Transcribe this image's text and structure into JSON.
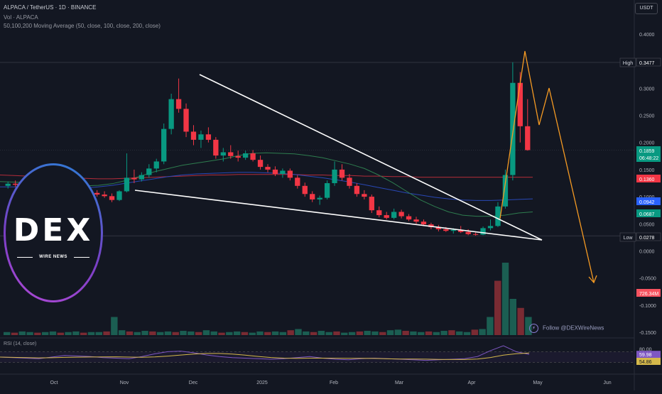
{
  "header": {
    "symbol_line": "ALPACA / TetherUS · 1D · BINANCE",
    "volume_line": "Vol · ALPACA",
    "ma_line": "50,100,200 Moving Average (50, close, 100, close, 200, close)"
  },
  "currency": "USDT",
  "follow": {
    "icon": "lightning-icon",
    "text": "Follow @DEXWireNews"
  },
  "logo": {
    "word": "DEX",
    "sub": "WIRE NEWS"
  },
  "chart_data": {
    "type": "candlestick",
    "price_axis": {
      "ticks": [
        "0.4000",
        "0.3000",
        "0.2500",
        "0.2000",
        "0.1500",
        "0.1000",
        "0.0500",
        "0.0000",
        "-0.0500",
        "-0.1000",
        "-0.1500"
      ],
      "range": [
        -0.15,
        0.4
      ]
    },
    "time_axis": {
      "ticks": [
        "Oct",
        "Nov",
        "Dec",
        "2025",
        "Feb",
        "Mar",
        "Apr",
        "May",
        "Jun"
      ]
    },
    "price_labels": [
      {
        "text": "High",
        "value": "0.3477",
        "color": "#131722",
        "border": "#434651"
      },
      {
        "text": "",
        "value": "0.1859",
        "sub": "06:48:22",
        "color": "#089981"
      },
      {
        "text": "",
        "value": "0.1360",
        "color": "#f23645"
      },
      {
        "text": "",
        "value": "0.0942",
        "color": "#2962ff"
      },
      {
        "text": "",
        "value": "0.0687",
        "color": "#089981"
      },
      {
        "text": "Low",
        "value": "0.0278",
        "color": "#131722",
        "border": "#434651"
      },
      {
        "text": "",
        "value": "726.34M",
        "color": "#f7525f"
      }
    ],
    "candles_ohlc_approx": [
      [
        0.12,
        0.128,
        0.115,
        0.124
      ],
      [
        0.124,
        0.13,
        0.118,
        0.122
      ],
      [
        0.122,
        0.125,
        0.11,
        0.113
      ],
      [
        0.113,
        0.12,
        0.108,
        0.118
      ],
      [
        0.118,
        0.126,
        0.114,
        0.121
      ],
      [
        0.121,
        0.124,
        0.112,
        0.115
      ],
      [
        0.115,
        0.119,
        0.106,
        0.108
      ],
      [
        0.108,
        0.116,
        0.104,
        0.112
      ],
      [
        0.112,
        0.122,
        0.11,
        0.119
      ],
      [
        0.119,
        0.125,
        0.113,
        0.116
      ],
      [
        0.116,
        0.121,
        0.11,
        0.113
      ],
      [
        0.113,
        0.118,
        0.105,
        0.107
      ],
      [
        0.107,
        0.112,
        0.1,
        0.104
      ],
      [
        0.104,
        0.11,
        0.098,
        0.101
      ],
      [
        0.101,
        0.106,
        0.09,
        0.094
      ],
      [
        0.094,
        0.112,
        0.092,
        0.11
      ],
      [
        0.11,
        0.18,
        0.108,
        0.135
      ],
      [
        0.135,
        0.15,
        0.125,
        0.132
      ],
      [
        0.132,
        0.145,
        0.128,
        0.14
      ],
      [
        0.14,
        0.16,
        0.135,
        0.152
      ],
      [
        0.152,
        0.17,
        0.145,
        0.165
      ],
      [
        0.165,
        0.235,
        0.16,
        0.225
      ],
      [
        0.225,
        0.29,
        0.215,
        0.28
      ],
      [
        0.28,
        0.318,
        0.255,
        0.262
      ],
      [
        0.262,
        0.272,
        0.21,
        0.22
      ],
      [
        0.22,
        0.232,
        0.195,
        0.205
      ],
      [
        0.205,
        0.222,
        0.19,
        0.215
      ],
      [
        0.215,
        0.228,
        0.2,
        0.205
      ],
      [
        0.205,
        0.21,
        0.17,
        0.176
      ],
      [
        0.176,
        0.19,
        0.165,
        0.182
      ],
      [
        0.182,
        0.195,
        0.17,
        0.175
      ],
      [
        0.175,
        0.185,
        0.165,
        0.172
      ],
      [
        0.172,
        0.185,
        0.168,
        0.18
      ],
      [
        0.18,
        0.186,
        0.165,
        0.168
      ],
      [
        0.168,
        0.176,
        0.15,
        0.155
      ],
      [
        0.155,
        0.16,
        0.145,
        0.15
      ],
      [
        0.15,
        0.156,
        0.138,
        0.142
      ],
      [
        0.142,
        0.152,
        0.135,
        0.148
      ],
      [
        0.148,
        0.152,
        0.13,
        0.135
      ],
      [
        0.135,
        0.14,
        0.115,
        0.12
      ],
      [
        0.12,
        0.126,
        0.1,
        0.105
      ],
      [
        0.105,
        0.11,
        0.09,
        0.095
      ],
      [
        0.095,
        0.102,
        0.085,
        0.098
      ],
      [
        0.098,
        0.13,
        0.095,
        0.125
      ],
      [
        0.125,
        0.165,
        0.12,
        0.15
      ],
      [
        0.15,
        0.16,
        0.13,
        0.135
      ],
      [
        0.135,
        0.142,
        0.115,
        0.12
      ],
      [
        0.12,
        0.125,
        0.1,
        0.105
      ],
      [
        0.105,
        0.112,
        0.095,
        0.1
      ],
      [
        0.1,
        0.104,
        0.07,
        0.075
      ],
      [
        0.075,
        0.082,
        0.062,
        0.066
      ],
      [
        0.066,
        0.072,
        0.058,
        0.061
      ],
      [
        0.061,
        0.078,
        0.058,
        0.072
      ],
      [
        0.072,
        0.076,
        0.06,
        0.064
      ],
      [
        0.064,
        0.068,
        0.055,
        0.058
      ],
      [
        0.058,
        0.063,
        0.05,
        0.054
      ],
      [
        0.054,
        0.058,
        0.046,
        0.049
      ],
      [
        0.049,
        0.052,
        0.04,
        0.044
      ],
      [
        0.044,
        0.048,
        0.036,
        0.04
      ],
      [
        0.04,
        0.044,
        0.035,
        0.037
      ],
      [
        0.037,
        0.042,
        0.032,
        0.039
      ],
      [
        0.039,
        0.046,
        0.033,
        0.035
      ],
      [
        0.035,
        0.04,
        0.029,
        0.031
      ],
      [
        0.031,
        0.034,
        0.028,
        0.03
      ],
      [
        0.03,
        0.045,
        0.029,
        0.042
      ],
      [
        0.042,
        0.058,
        0.038,
        0.046
      ],
      [
        0.046,
        0.09,
        0.044,
        0.082
      ],
      [
        0.082,
        0.15,
        0.078,
        0.14
      ],
      [
        0.14,
        0.348,
        0.13,
        0.31
      ],
      [
        0.31,
        0.33,
        0.2,
        0.23
      ],
      [
        0.23,
        0.28,
        0.185,
        0.186
      ]
    ],
    "ma50_approx": [
      0.128,
      0.127,
      0.126,
      0.124,
      0.122,
      0.121,
      0.12,
      0.121,
      0.124,
      0.13,
      0.138,
      0.146,
      0.152,
      0.158,
      0.162,
      0.166,
      0.17,
      0.176,
      0.18,
      0.181,
      0.18,
      0.179,
      0.176,
      0.172,
      0.166,
      0.16,
      0.152,
      0.14,
      0.126,
      0.11,
      0.094,
      0.082,
      0.072,
      0.066,
      0.064,
      0.064,
      0.066,
      0.07,
      0.072
    ],
    "ma100_approx": [
      0.118,
      0.118,
      0.117,
      0.116,
      0.115,
      0.115,
      0.116,
      0.118,
      0.121,
      0.125,
      0.129,
      0.133,
      0.137,
      0.14,
      0.142,
      0.143,
      0.144,
      0.145,
      0.145,
      0.144,
      0.143,
      0.141,
      0.138,
      0.135,
      0.131,
      0.127,
      0.122,
      0.117,
      0.112,
      0.107,
      0.103,
      0.099,
      0.096,
      0.094,
      0.093,
      0.093,
      0.094,
      0.095,
      0.096
    ],
    "ma200_approx": [
      0.14,
      0.139,
      0.138,
      0.137,
      0.136,
      0.135,
      0.134,
      0.133,
      0.133,
      0.134,
      0.135,
      0.136,
      0.137,
      0.138,
      0.139,
      0.14,
      0.14,
      0.141,
      0.141,
      0.141,
      0.141,
      0.141,
      0.14,
      0.14,
      0.139,
      0.139,
      0.138,
      0.138,
      0.137,
      0.137,
      0.136,
      0.136,
      0.136,
      0.136,
      0.136,
      0.136,
      0.136,
      0.136,
      0.136
    ],
    "rsi": {
      "label": "RSI (14, close)",
      "ticks": [
        "80.00",
        "59.98",
        "54.86"
      ],
      "values_approx": [
        50,
        48,
        46,
        44,
        50,
        56,
        54,
        52,
        48,
        46,
        44,
        52,
        62,
        70,
        72,
        66,
        58,
        52,
        48,
        46,
        44,
        42,
        44,
        48,
        52,
        46,
        42,
        40,
        44,
        46,
        44,
        42,
        40,
        38,
        40,
        42,
        44,
        52,
        74,
        92,
        70,
        60
      ]
    },
    "volume_approx": [
      5,
      4,
      6,
      5,
      4,
      5,
      6,
      4,
      5,
      6,
      4,
      5,
      5,
      6,
      30,
      8,
      6,
      5,
      7,
      6,
      5,
      6,
      5,
      7,
      6,
      5,
      8,
      6,
      4,
      5,
      6,
      5,
      4,
      6,
      5,
      6,
      5,
      8,
      10,
      6,
      5,
      7,
      5,
      6,
      4,
      5,
      6,
      7,
      6,
      5,
      8,
      9,
      7,
      6,
      5,
      6,
      5,
      7,
      8,
      6,
      5,
      9,
      10,
      30,
      90,
      120,
      60,
      45,
      30
    ]
  }
}
